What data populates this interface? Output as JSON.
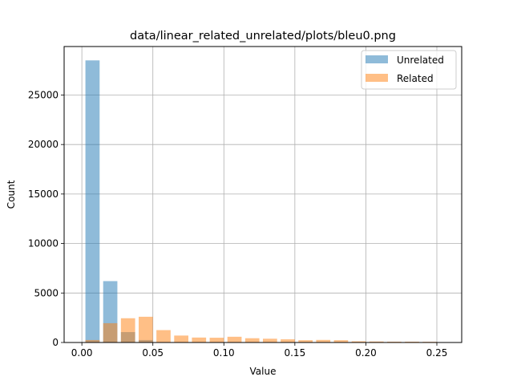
{
  "chart_data": {
    "type": "bar",
    "title": "data/linear_related_unrelated/plots/bleu0.png",
    "xlabel": "Value",
    "ylabel": "Count",
    "xlim": [
      -0.0125,
      0.2675
    ],
    "ylim": [
      0,
      29900
    ],
    "xticks": [
      0.0,
      0.05,
      0.1,
      0.15,
      0.2,
      0.25
    ],
    "xtick_labels": [
      "0.00",
      "0.05",
      "0.10",
      "0.15",
      "0.20",
      "0.25"
    ],
    "yticks": [
      0,
      5000,
      10000,
      15000,
      20000,
      25000
    ],
    "ytick_labels": [
      "0",
      "5000",
      "10000",
      "15000",
      "20000",
      "25000"
    ],
    "grid": true,
    "legend_position": "top-right",
    "bin_width": 0.0125,
    "series": [
      {
        "name": "Unrelated",
        "color": "#1f77b4",
        "opacity": 0.5,
        "x": [
          0.0075,
          0.02,
          0.0325,
          0.045
        ],
        "values": [
          28500,
          6200,
          1050,
          250
        ]
      },
      {
        "name": "Related",
        "color": "#ff7f0e",
        "opacity": 0.5,
        "x": [
          0.0075,
          0.02,
          0.0325,
          0.045,
          0.0575,
          0.07,
          0.0825,
          0.095,
          0.1075,
          0.12,
          0.1325,
          0.145,
          0.1575,
          0.17,
          0.1825,
          0.195,
          0.2075,
          0.22,
          0.2325,
          0.245
        ],
        "values": [
          250,
          1950,
          2450,
          2600,
          1250,
          700,
          500,
          480,
          580,
          430,
          380,
          320,
          230,
          260,
          230,
          120,
          100,
          80,
          80,
          70
        ]
      }
    ]
  }
}
